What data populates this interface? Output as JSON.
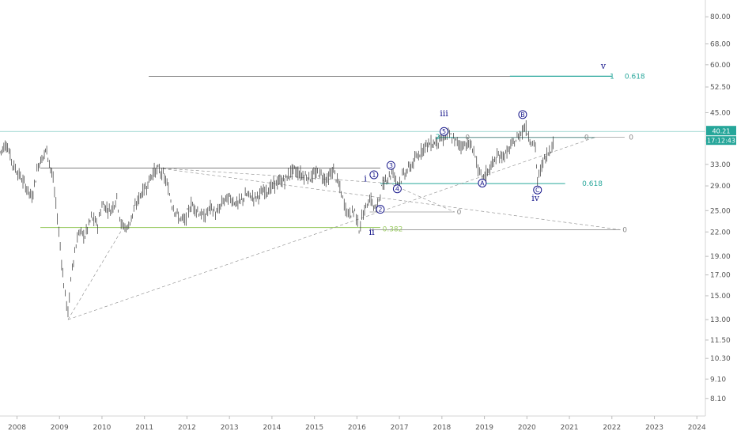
{
  "chart_data": {
    "type": "line",
    "title": "",
    "xlabel": "",
    "ylabel": "",
    "scale": "log",
    "xlim": [
      2007.6,
      2024.2
    ],
    "ylim": [
      7.5,
      86
    ],
    "x_ticks": [
      "2008",
      "2009",
      "2010",
      "2011",
      "2012",
      "2013",
      "2014",
      "2015",
      "2016",
      "2017",
      "2018",
      "2019",
      "2020",
      "2021",
      "2022",
      "2023",
      "2024"
    ],
    "y_ticks": [
      "80.00",
      "68.00",
      "60.00",
      "52.50",
      "45.00",
      "38.00",
      "33.00",
      "29.00",
      "25.00",
      "22.00",
      "19.00",
      "17.00",
      "15.00",
      "13.00",
      "11.50",
      "10.30",
      "9.10",
      "8.10"
    ],
    "price_path": [
      [
        2007.6,
        35.5
      ],
      [
        2007.75,
        37.5
      ],
      [
        2007.9,
        33
      ],
      [
        2008.05,
        31
      ],
      [
        2008.2,
        29
      ],
      [
        2008.35,
        27
      ],
      [
        2008.5,
        33
      ],
      [
        2008.7,
        36
      ],
      [
        2008.85,
        30
      ],
      [
        2008.95,
        24
      ],
      [
        2009.05,
        18.5
      ],
      [
        2009.1,
        16
      ],
      [
        2009.2,
        13.5
      ],
      [
        2009.3,
        18
      ],
      [
        2009.45,
        22
      ],
      [
        2009.6,
        21.5
      ],
      [
        2009.75,
        24
      ],
      [
        2009.9,
        23
      ],
      [
        2010.0,
        26
      ],
      [
        2010.2,
        25
      ],
      [
        2010.35,
        27
      ],
      [
        2010.45,
        23
      ],
      [
        2010.6,
        22.5
      ],
      [
        2010.75,
        25
      ],
      [
        2010.9,
        27.5
      ],
      [
        2011.05,
        29
      ],
      [
        2011.2,
        31.5
      ],
      [
        2011.35,
        32
      ],
      [
        2011.5,
        30
      ],
      [
        2011.65,
        26
      ],
      [
        2011.8,
        24
      ],
      [
        2011.95,
        23.5
      ],
      [
        2012.1,
        26
      ],
      [
        2012.25,
        25
      ],
      [
        2012.4,
        24
      ],
      [
        2012.55,
        25.5
      ],
      [
        2012.7,
        24.5
      ],
      [
        2012.85,
        26.5
      ],
      [
        2013.0,
        27
      ],
      [
        2013.2,
        26
      ],
      [
        2013.4,
        27.5
      ],
      [
        2013.6,
        27
      ],
      [
        2013.8,
        28
      ],
      [
        2013.95,
        28.5
      ],
      [
        2014.1,
        29.5
      ],
      [
        2014.3,
        30
      ],
      [
        2014.5,
        32
      ],
      [
        2014.7,
        31
      ],
      [
        2014.9,
        30.5
      ],
      [
        2015.1,
        31.5
      ],
      [
        2015.3,
        30
      ],
      [
        2015.45,
        32
      ],
      [
        2015.6,
        28.5
      ],
      [
        2015.7,
        26
      ],
      [
        2015.8,
        24.5
      ],
      [
        2015.95,
        25
      ],
      [
        2016.05,
        22.5
      ],
      [
        2016.15,
        24.5
      ],
      [
        2016.3,
        27
      ],
      [
        2016.45,
        25
      ],
      [
        2016.55,
        28
      ],
      [
        2016.7,
        30.5
      ],
      [
        2016.85,
        31.5
      ],
      [
        2016.95,
        29.5
      ],
      [
        2017.1,
        31
      ],
      [
        2017.3,
        33
      ],
      [
        2017.45,
        35
      ],
      [
        2017.6,
        37
      ],
      [
        2017.8,
        37.5
      ],
      [
        2018.0,
        38.5
      ],
      [
        2018.15,
        39.5
      ],
      [
        2018.3,
        38
      ],
      [
        2018.45,
        37
      ],
      [
        2018.6,
        37.5
      ],
      [
        2018.75,
        36
      ],
      [
        2018.85,
        32
      ],
      [
        2018.95,
        30
      ],
      [
        2019.1,
        32
      ],
      [
        2019.3,
        34.5
      ],
      [
        2019.5,
        35
      ],
      [
        2019.65,
        37
      ],
      [
        2019.8,
        39
      ],
      [
        2019.95,
        41.5
      ],
      [
        2020.1,
        38
      ],
      [
        2020.2,
        36.5
      ],
      [
        2020.25,
        29.5
      ],
      [
        2020.35,
        33
      ],
      [
        2020.5,
        35.5
      ],
      [
        2020.65,
        38
      ]
    ],
    "price_badge": {
      "value": "40.21",
      "time": "17:12:43",
      "color": "#26a69a"
    },
    "fib_labels": [
      {
        "text": "0.618",
        "price": 56.0,
        "color": "#26a69a"
      },
      {
        "text": "1",
        "price": 56.0,
        "color": "#26a69a"
      },
      {
        "text": "0.618",
        "price": 29.4,
        "color": "#26a69a"
      },
      {
        "text": "0.382",
        "price": 22.6,
        "color": "#9ccc65"
      },
      {
        "text": "0",
        "price": 38.8,
        "color": "#888888"
      },
      {
        "text": "0",
        "price": 38.8,
        "color": "#888888"
      },
      {
        "text": "0",
        "price": 24.8,
        "color": "#888888"
      },
      {
        "text": "0",
        "price": 22.3,
        "color": "#888888"
      },
      {
        "text": "2",
        "price": 38.9,
        "color": "#26a69a"
      },
      {
        "text": "0",
        "price": 38.8,
        "color": "#888888"
      }
    ],
    "wave_labels": [
      {
        "text": "v"
      },
      {
        "text": "iii"
      },
      {
        "text": "i"
      },
      {
        "text": "ii"
      },
      {
        "text": "iv"
      }
    ],
    "circle_labels": [
      "1",
      "2",
      "3",
      "4",
      "5",
      "A",
      "B",
      "C"
    ]
  }
}
